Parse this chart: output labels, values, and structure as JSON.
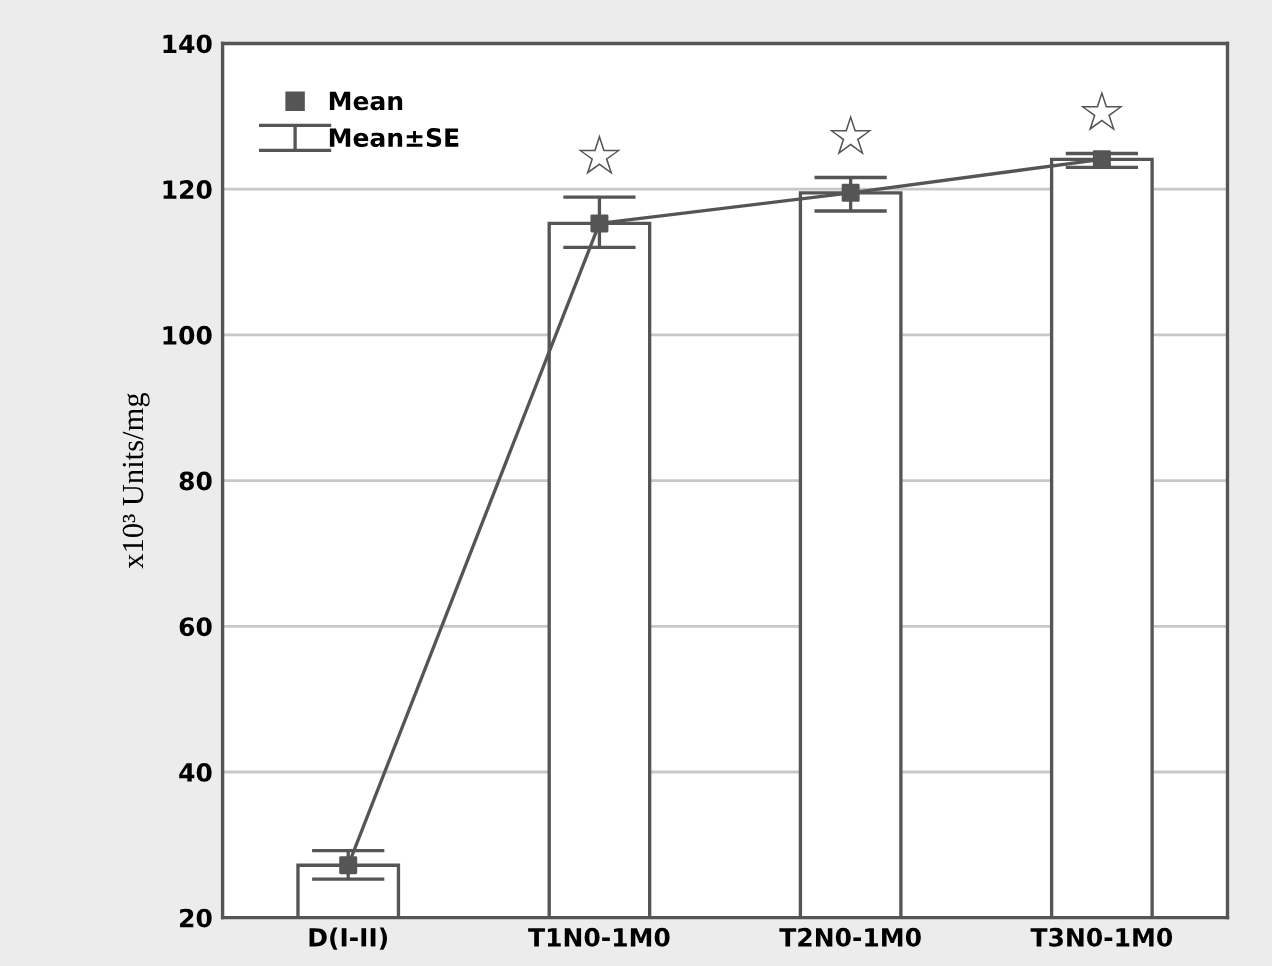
{
  "chart_data": {
    "type": "bar",
    "ylabel": "x10³ Units/mg",
    "categories": [
      "D(I-II)",
      "T1N0-1M0",
      "T2N0-1M0",
      "T3N0-1M0"
    ],
    "series": [
      {
        "color": "#ffffff",
        "values": [
          27.2,
          115.3,
          119.5,
          124.1
        ]
      },
      {
        "type": "scatter",
        "name": "Mean",
        "color": "#555555",
        "marker": "square",
        "values": [
          27.2,
          115.3,
          119.5,
          124.1
        ]
      },
      {
        "type": "line",
        "name": "Mean±SE",
        "color": "#555555",
        "marker": "none",
        "line_style": "solid",
        "values": [
          27.2,
          115.3,
          119.5,
          124.1
        ],
        "errors": [
          [
            25.3,
            29.2
          ],
          [
            112.0,
            118.9
          ],
          [
            117.0,
            121.6
          ],
          [
            123.0,
            124.9
          ]
        ]
      }
    ],
    "annotations": [
      "☆",
      "☆",
      "☆"
    ],
    "ylim": [
      20,
      140
    ],
    "yticks": [
      20,
      40,
      60,
      80,
      100,
      120,
      140
    ],
    "grid": "y",
    "legend": "top left"
  }
}
